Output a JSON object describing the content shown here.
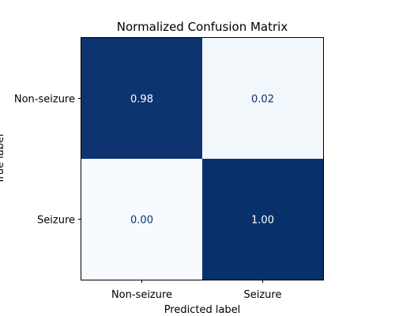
{
  "chart_data": {
    "type": "heatmap",
    "title": "Normalized Confusion Matrix",
    "xlabel": "Predicted label",
    "ylabel": "True label",
    "x_categories": [
      "Non-seizure",
      "Seizure"
    ],
    "y_categories": [
      "Non-seizure",
      "Seizure"
    ],
    "values": [
      [
        0.98,
        0.02
      ],
      [
        0.0,
        1.0
      ]
    ],
    "value_labels": [
      [
        "0.98",
        "0.02"
      ],
      [
        "0.00",
        "1.00"
      ]
    ],
    "colormap": "Blues",
    "color_low": "#f7fbff",
    "color_high": "#08306b",
    "text_color_dark_cell": "#ffffff",
    "text_color_light_cell": "#08306b"
  }
}
